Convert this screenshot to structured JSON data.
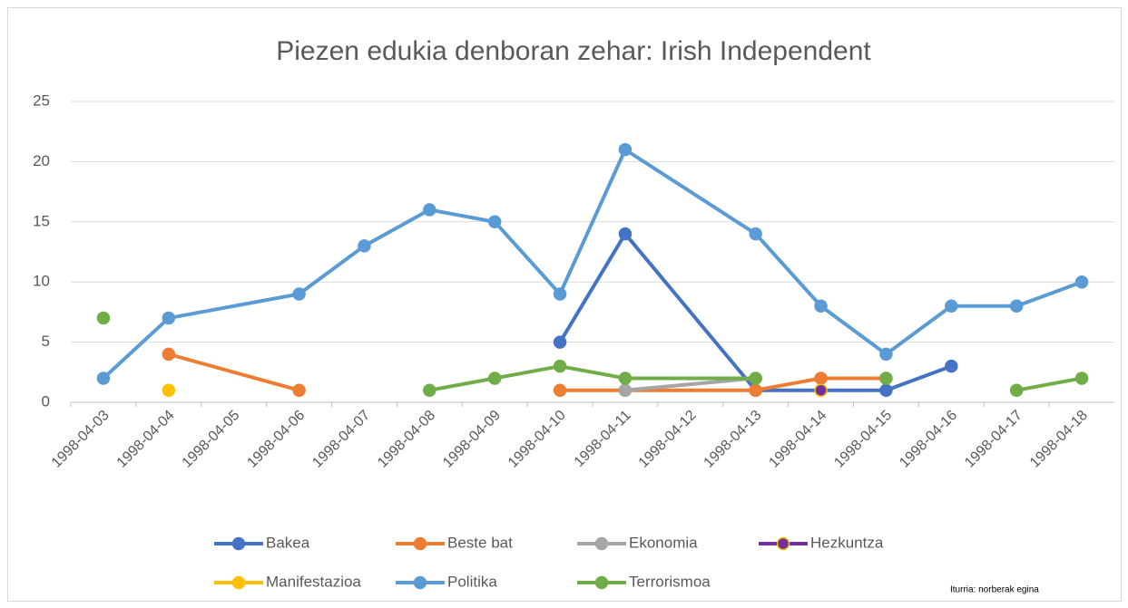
{
  "chart_data": {
    "type": "line",
    "title": "Piezen edukia denboran zehar: Irish Independent",
    "source": "Iturria: norberak egina",
    "categories": [
      "1998-04-03",
      "1998-04-04",
      "1998-04-05",
      "1998-04-06",
      "1998-04-07",
      "1998-04-08",
      "1998-04-09",
      "1998-04-10",
      "1998-04-11",
      "1998-04-12",
      "1998-04-13",
      "1998-04-14",
      "1998-04-15",
      "1998-04-16",
      "1998-04-17",
      "1998-04-18"
    ],
    "ylim": [
      0,
      25
    ],
    "yticks": [
      0,
      5,
      10,
      15,
      20,
      25
    ],
    "grid": true,
    "series": [
      {
        "name": "Bakea",
        "color": "#4472c4",
        "x": [
          "1998-04-10",
          "1998-04-11",
          "1998-04-13",
          "1998-04-14",
          "1998-04-15",
          "1998-04-16"
        ],
        "values": [
          5,
          14,
          1,
          1,
          1,
          3
        ]
      },
      {
        "name": "Beste bat",
        "color": "#ed7d31",
        "x": [
          "1998-04-04",
          "1998-04-06",
          "1998-04-07",
          "1998-04-10",
          "1998-04-11",
          "1998-04-13",
          "1998-04-14",
          "1998-04-15"
        ],
        "values": [
          4,
          1,
          null,
          1,
          1,
          1,
          2,
          2
        ]
      },
      {
        "name": "Ekonomia",
        "color": "#a5a5a5",
        "x": [
          "1998-04-11",
          "1998-04-13"
        ],
        "values": [
          1,
          2
        ]
      },
      {
        "name": "Hezkuntza",
        "color": "#7030a0",
        "marker_edge": "#ffc000",
        "x": [
          "1998-04-14"
        ],
        "values": [
          1
        ]
      },
      {
        "name": "Manifestazioa",
        "color": "#ffc000",
        "x": [
          "1998-04-04"
        ],
        "values": [
          1
        ]
      },
      {
        "name": "Politika",
        "color": "#5b9bd5",
        "x": [
          "1998-04-03",
          "1998-04-04",
          "1998-04-06",
          "1998-04-07",
          "1998-04-08",
          "1998-04-09",
          "1998-04-10",
          "1998-04-11",
          "1998-04-13",
          "1998-04-14",
          "1998-04-15",
          "1998-04-16",
          "1998-04-17",
          "1998-04-18"
        ],
        "values": [
          2,
          7,
          9,
          13,
          16,
          15,
          9,
          21,
          14,
          8,
          4,
          8,
          8,
          10
        ]
      },
      {
        "name": "Terrorismoa",
        "color": "#70ad47",
        "x": [
          "1998-04-03",
          "1998-04-04",
          "1998-04-08",
          "1998-04-09",
          "1998-04-10",
          "1998-04-11",
          "1998-04-13",
          "1998-04-14",
          "1998-04-15",
          "1998-04-16",
          "1998-04-17",
          "1998-04-18"
        ],
        "values": [
          7,
          null,
          1,
          2,
          3,
          2,
          2,
          null,
          2,
          null,
          1,
          2
        ]
      }
    ]
  }
}
